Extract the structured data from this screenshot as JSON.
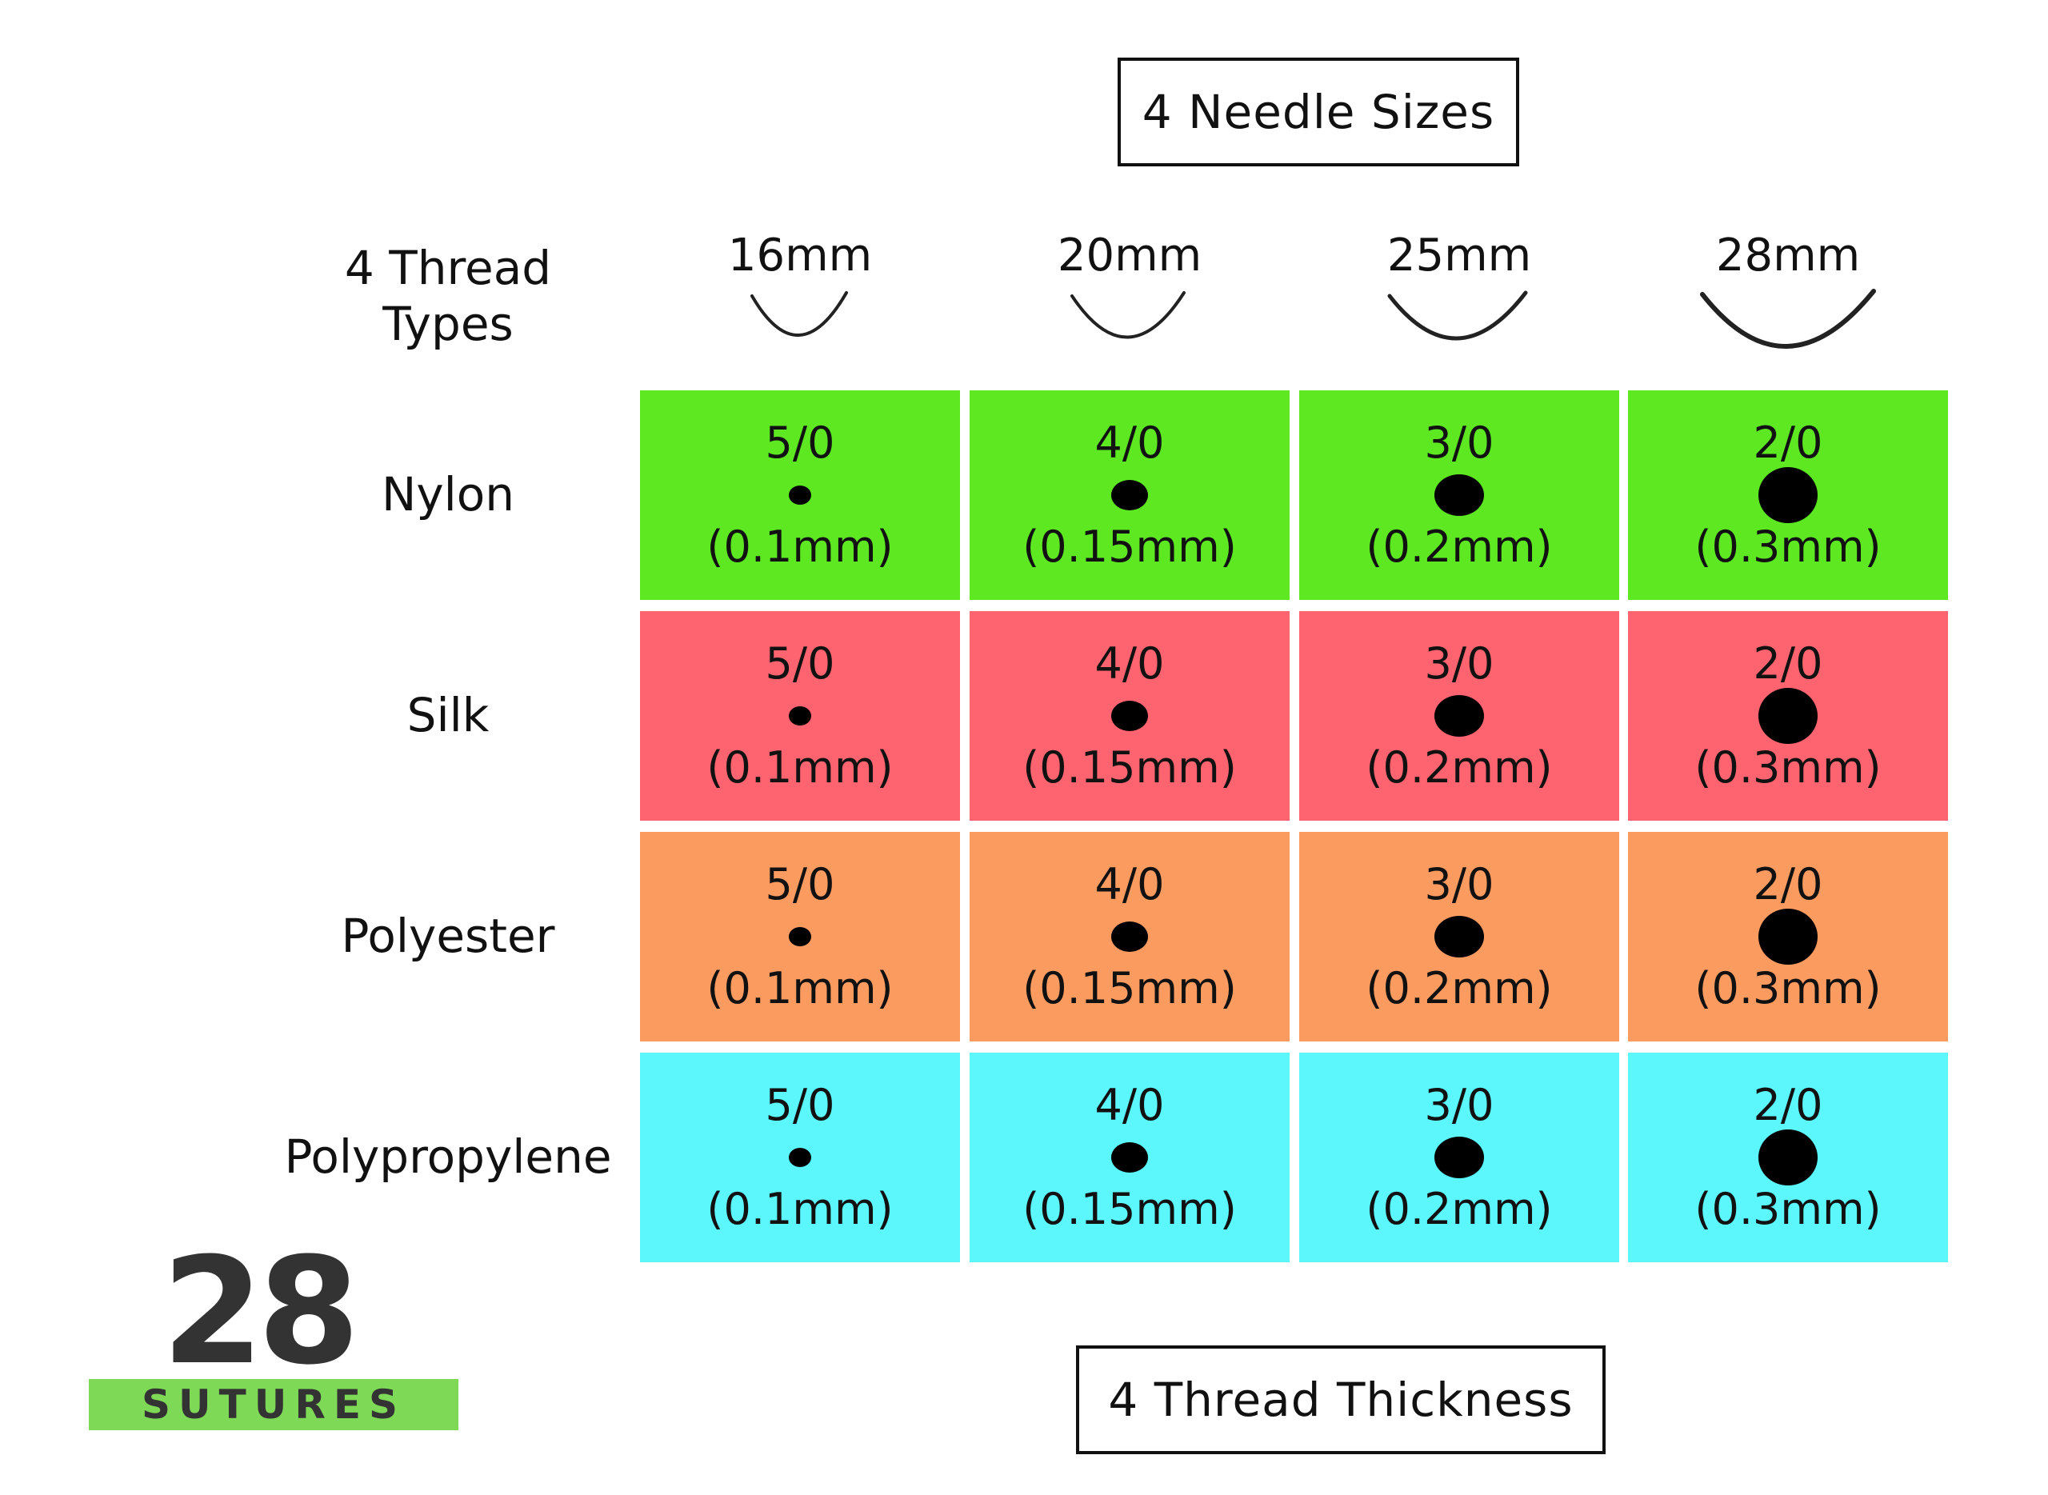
{
  "top_label": "4 Needle Sizes",
  "bottom_label": "4 Thread Thickness",
  "corner_label": [
    "4 Thread",
    "Types"
  ],
  "needle_sizes": [
    "16mm",
    "20mm",
    "25mm",
    "28mm"
  ],
  "thread_types": [
    {
      "name": "Nylon",
      "color": "#5de822"
    },
    {
      "name": "Silk",
      "color": "#fe646f"
    },
    {
      "name": "Polyester",
      "color": "#fc9b60"
    },
    {
      "name": "Polypropylene",
      "color": "#5bf7fc"
    }
  ],
  "thicknesses": [
    {
      "gauge": "5/0",
      "diameter": "(0.1mm)"
    },
    {
      "gauge": "4/0",
      "diameter": "(0.15mm)"
    },
    {
      "gauge": "3/0",
      "diameter": "(0.2mm)"
    },
    {
      "gauge": "2/0",
      "diameter": "(0.3mm)"
    }
  ],
  "logo": {
    "number": "28",
    "word": "SUTURES",
    "bar_color": "#7ed957"
  }
}
